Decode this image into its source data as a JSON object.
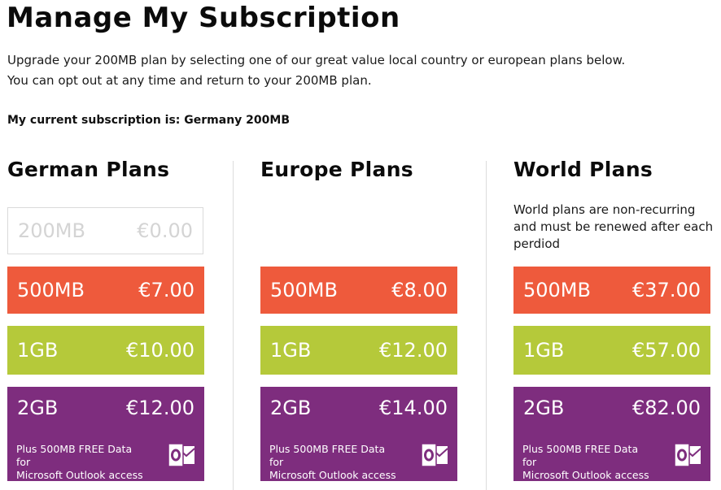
{
  "header": {
    "title": "Manage My Subscription",
    "intro_line1": "Upgrade your 200MB plan by selecting one of our great value local country or european plans below.",
    "intro_line2": "You can opt out at any time and return to your 200MB plan.",
    "current_subscription": "My current subscription is: Germany 200MB"
  },
  "colors": {
    "red": "#ee5a3c",
    "green": "#b5c93a",
    "purple": "#7e2d7e",
    "ghost_text": "#d4d4d4"
  },
  "german": {
    "title": "German Plans",
    "plans": [
      {
        "name": "200MB",
        "price": "€0.00"
      },
      {
        "name": "500MB",
        "price": "€7.00"
      },
      {
        "name": "1GB",
        "price": "€10.00"
      },
      {
        "name": "2GB",
        "price": "€12.00",
        "promo_line1": "Plus 500MB FREE Data for",
        "promo_line2": "Microsoft Outlook access",
        "icon": "outlook-icon"
      }
    ]
  },
  "europe": {
    "title": "Europe Plans",
    "plans": [
      {
        "name": "500MB",
        "price": "€8.00"
      },
      {
        "name": "1GB",
        "price": "€12.00"
      },
      {
        "name": "2GB",
        "price": "€14.00",
        "promo_line1": "Plus 500MB FREE Data for",
        "promo_line2": "Microsoft Outlook access",
        "icon": "outlook-icon"
      }
    ]
  },
  "world": {
    "title": "World Plans",
    "note_line1": "World plans are non-recurring",
    "note_line2": "and must be renewed after each",
    "note_line3": "perdiod",
    "plans": [
      {
        "name": "500MB",
        "price": "€37.00"
      },
      {
        "name": "1GB",
        "price": "€57.00"
      },
      {
        "name": "2GB",
        "price": "€82.00",
        "promo_line1": "Plus 500MB FREE Data for",
        "promo_line2": "Microsoft Outlook access",
        "icon": "outlook-icon"
      }
    ]
  }
}
